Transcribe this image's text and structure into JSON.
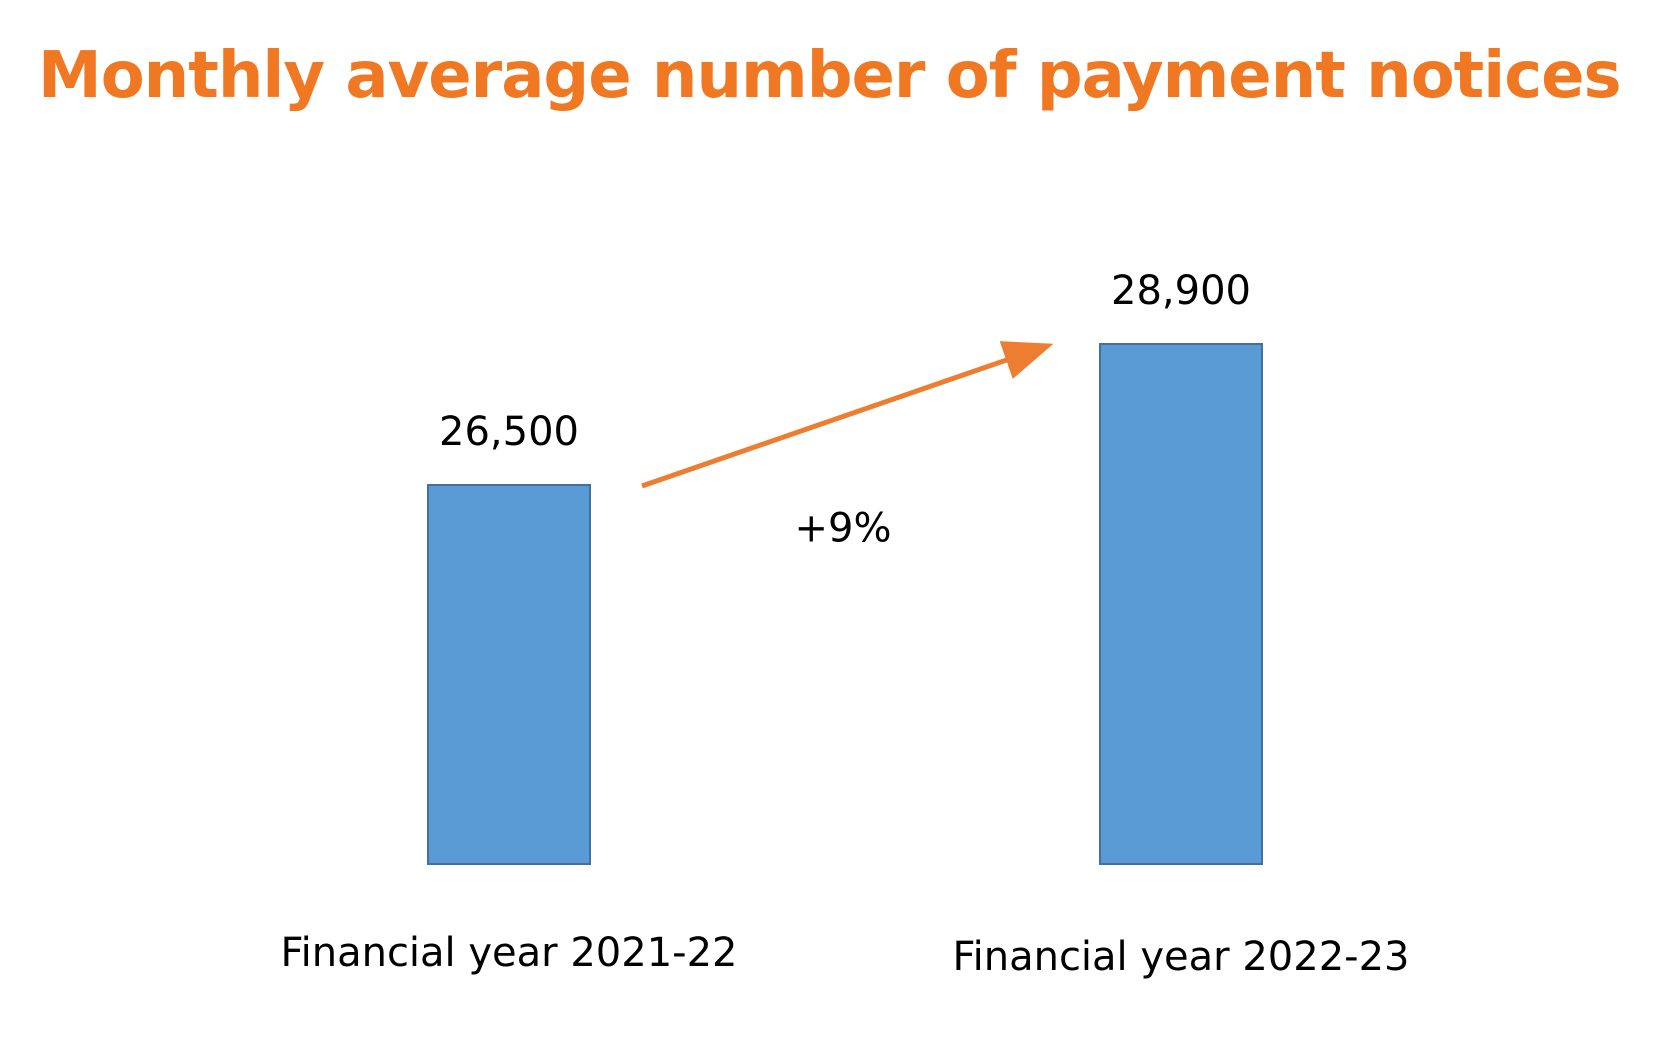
{
  "colors": {
    "title": "#F07822",
    "bar_fill": "#5B9BD5",
    "bar_stroke": "#41719C",
    "arrow": "#ED7D31"
  },
  "chart_data": {
    "type": "bar",
    "title": "Monthly average number of payment notices",
    "categories": [
      "Financial year 2021-22",
      "Financial year 2022-23"
    ],
    "values": [
      26500,
      28900
    ],
    "value_labels": [
      "26,500",
      "28,900"
    ],
    "annotation": {
      "label": "+9%",
      "from_category": 0,
      "to_category": 1
    },
    "xlabel": "",
    "ylabel": "",
    "grid": false
  }
}
